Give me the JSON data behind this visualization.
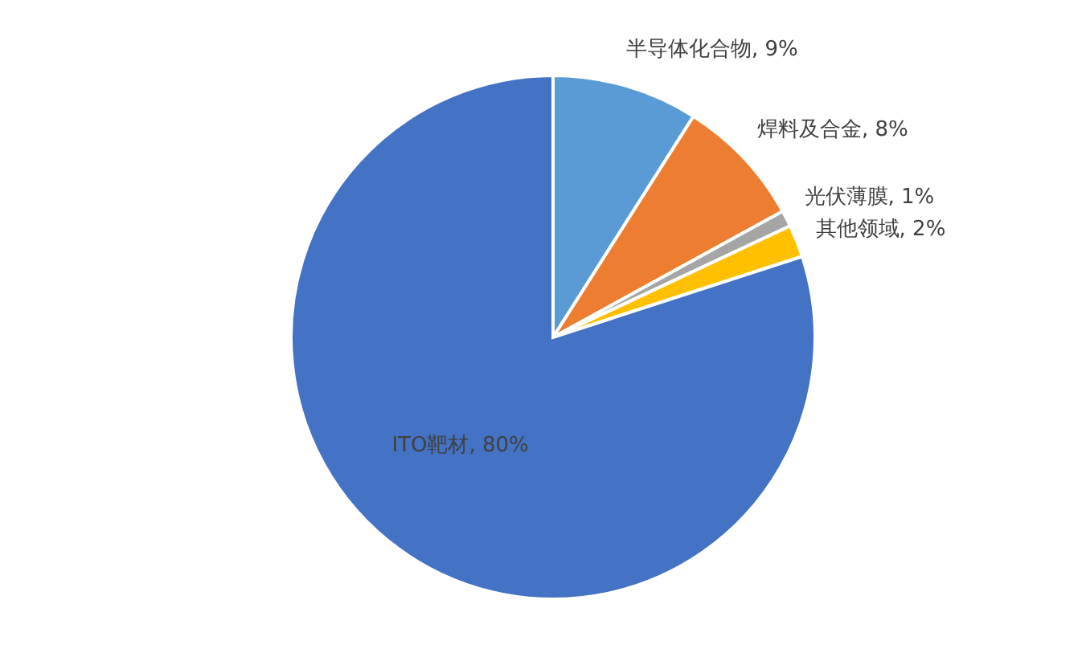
{
  "chart_data": {
    "type": "pie",
    "categories": [
      "半导体化合物",
      "焊料及合金",
      "光伏薄膜",
      "其他领域",
      "ITO靶材"
    ],
    "values": [
      9,
      8,
      1,
      2,
      80
    ],
    "value_labels": [
      "9%",
      "8%",
      "1%",
      "2%",
      "80%"
    ],
    "colors": [
      "#5b9bd5",
      "#ed7d31",
      "#a5a5a5",
      "#ffc000",
      "#4472c4"
    ],
    "legend": false
  }
}
